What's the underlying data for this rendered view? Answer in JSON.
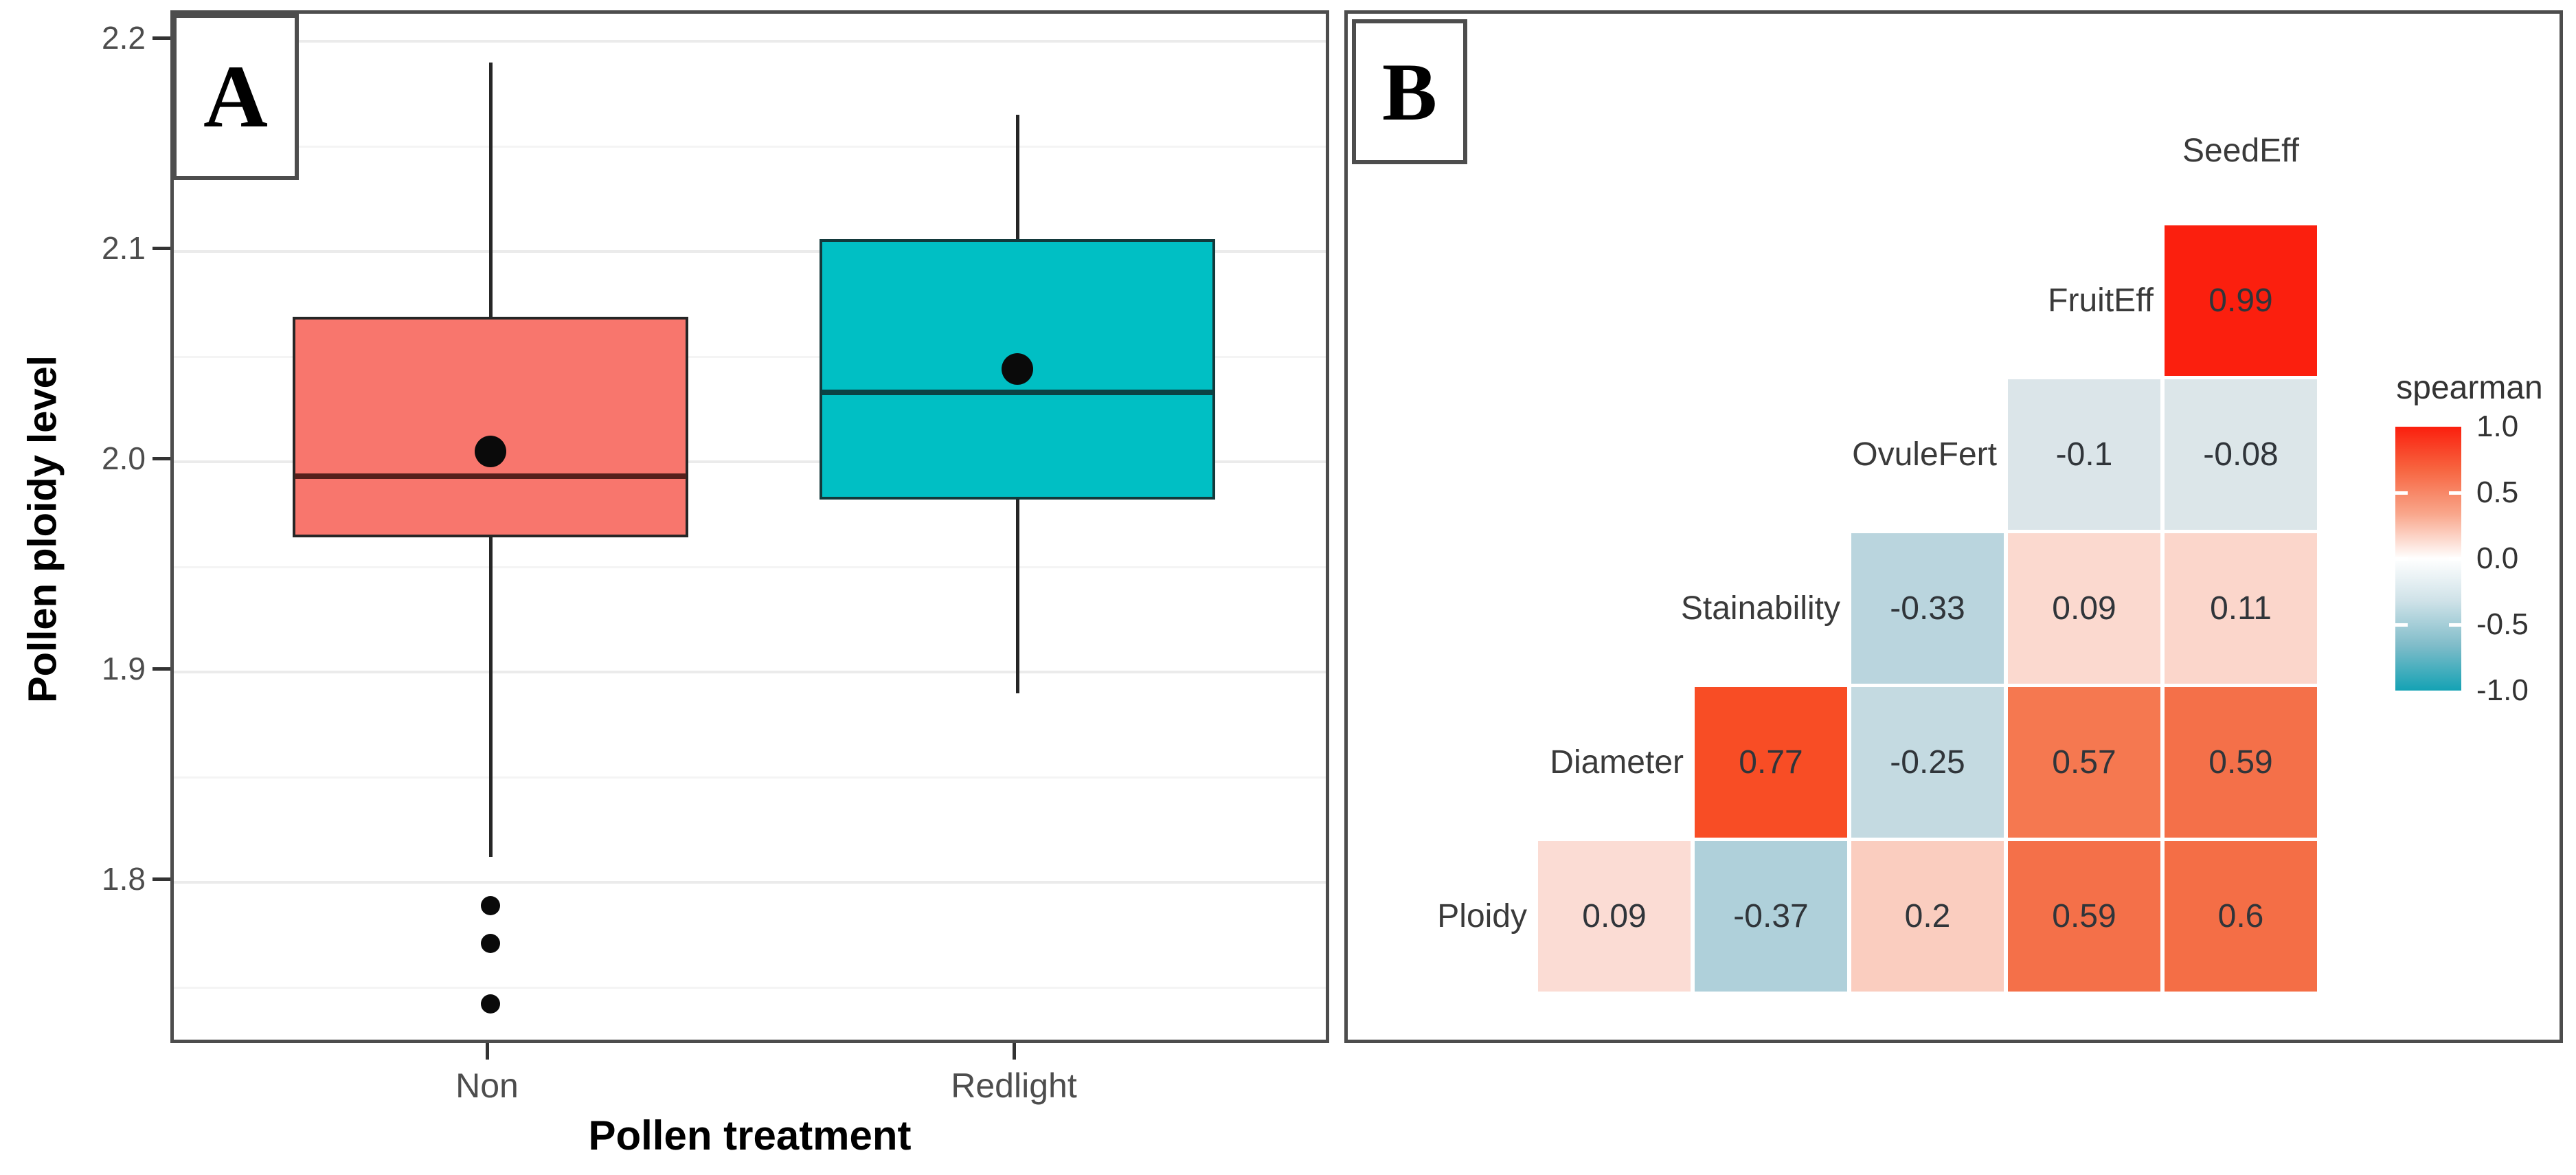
{
  "figure": {
    "background": "#ffffff"
  },
  "panel_a": {
    "letter": "A",
    "y_axis": {
      "title": "Pollen ploidy level",
      "tick_labels": [
        "2.2",
        "2.1",
        "2.0",
        "1.9",
        "1.8"
      ],
      "tick_values": [
        2.2,
        2.1,
        2.0,
        1.9,
        1.8
      ],
      "minor_tick_values": [
        2.15,
        2.05,
        1.95,
        1.85,
        1.75
      ]
    },
    "x_axis": {
      "title": "Pollen treatment",
      "categories": [
        "Non",
        "Redlight"
      ]
    },
    "boxes": [
      {
        "category": "Non",
        "fill": "#F8766D",
        "stroke": "#262626",
        "median_color": "#56201c",
        "whisker_high": 2.19,
        "q3": 2.069,
        "mean": 2.005,
        "median": 1.993,
        "q1": 1.964,
        "whisker_low": 1.812,
        "outliers": [
          1.789,
          1.771,
          1.742
        ]
      },
      {
        "category": "Redlight",
        "fill": "#00BFC4",
        "stroke": "#13393b",
        "median_color": "#0b4345",
        "whisker_high": 2.165,
        "q3": 2.106,
        "mean": 2.044,
        "median": 2.033,
        "q1": 1.982,
        "whisker_low": 1.89,
        "outliers": []
      }
    ]
  },
  "panel_b": {
    "letter": "B",
    "top_label": "SeedEff",
    "row_labels": [
      "FruitEff",
      "OvuleFert",
      "Stainability",
      "Diameter",
      "Ploidy"
    ],
    "rows": [
      {
        "label": "FruitEff",
        "cells": [
          {
            "col": 4,
            "value": "0.99",
            "color": "#FB1F0E"
          }
        ]
      },
      {
        "label": "OvuleFert",
        "cells": [
          {
            "col": 3,
            "value": "-0.1",
            "color": "#DBE5E9"
          },
          {
            "col": 4,
            "value": "-0.08",
            "color": "#DCE6E9"
          }
        ]
      },
      {
        "label": "Stainability",
        "cells": [
          {
            "col": 2,
            "value": "-0.33",
            "color": "#BAD5DE"
          },
          {
            "col": 3,
            "value": "0.09",
            "color": "#FBD9CF"
          },
          {
            "col": 4,
            "value": "0.11",
            "color": "#FBD6CB"
          }
        ]
      },
      {
        "label": "Diameter",
        "cells": [
          {
            "col": 1,
            "value": "0.77",
            "color": "#F84D25"
          },
          {
            "col": 2,
            "value": "-0.25",
            "color": "#C4DAE1"
          },
          {
            "col": 3,
            "value": "0.57",
            "color": "#F57850"
          },
          {
            "col": 4,
            "value": "0.59",
            "color": "#F47049"
          }
        ]
      },
      {
        "label": "Ploidy",
        "cells": [
          {
            "col": 0,
            "value": "0.09",
            "color": "#FBDCD4"
          },
          {
            "col": 1,
            "value": "-0.37",
            "color": "#AFD0DA"
          },
          {
            "col": 2,
            "value": "0.2",
            "color": "#FACDBF"
          },
          {
            "col": 3,
            "value": "0.59",
            "color": "#F47049"
          },
          {
            "col": 4,
            "value": "0.6",
            "color": "#F46E46"
          }
        ]
      }
    ],
    "legend": {
      "title": "spearman",
      "tick_labels": [
        "1.0",
        "0.5",
        "0.0",
        "-0.5",
        "-1.0"
      ],
      "high_color": "#FB1F0E",
      "mid_color": "#FFFFFF",
      "low_color": "#14A2B4"
    }
  },
  "chart_data": [
    {
      "type": "boxplot",
      "panel": "A",
      "xlabel": "Pollen treatment",
      "ylabel": "Pollen ploidy level",
      "ylim": [
        1.72,
        2.21
      ],
      "yticks": [
        2.2,
        2.1,
        2.0,
        1.9,
        1.8
      ],
      "categories": [
        "Non",
        "Redlight"
      ],
      "grid": true,
      "series": [
        {
          "name": "Non",
          "color": "#F8766D",
          "whisker_low": 1.81,
          "q1": 1.96,
          "median": 1.99,
          "mean": 2.005,
          "q3": 2.07,
          "whisker_high": 2.19,
          "outliers": [
            1.79,
            1.77,
            1.74
          ]
        },
        {
          "name": "Redlight",
          "color": "#00BFC4",
          "whisker_low": 1.89,
          "q1": 1.98,
          "median": 2.03,
          "mean": 2.04,
          "q3": 2.105,
          "whisker_high": 2.165,
          "outliers": []
        }
      ]
    },
    {
      "type": "heatmap",
      "panel": "B",
      "subtype": "lower-triangle correlation matrix",
      "legend_title": "spearman",
      "legend_ticks": [
        1.0,
        0.5,
        0.0,
        -0.5,
        -1.0
      ],
      "colorscale": {
        "min": -1,
        "max": 1,
        "low": "#14A2B4",
        "mid": "#FFFFFF",
        "high": "#FB1F0E"
      },
      "legend_position": "right",
      "variables": [
        "Ploidy",
        "Diameter",
        "Stainability",
        "OvuleFert",
        "FruitEff",
        "SeedEff"
      ],
      "pairs": [
        {
          "row": "FruitEff",
          "col": "SeedEff",
          "value": 0.99
        },
        {
          "row": "OvuleFert",
          "col": "FruitEff",
          "value": -0.1
        },
        {
          "row": "OvuleFert",
          "col": "SeedEff",
          "value": -0.08
        },
        {
          "row": "Stainability",
          "col": "OvuleFert",
          "value": -0.33
        },
        {
          "row": "Stainability",
          "col": "FruitEff",
          "value": 0.09
        },
        {
          "row": "Stainability",
          "col": "SeedEff",
          "value": 0.11
        },
        {
          "row": "Diameter",
          "col": "Stainability",
          "value": 0.77
        },
        {
          "row": "Diameter",
          "col": "OvuleFert",
          "value": -0.25
        },
        {
          "row": "Diameter",
          "col": "FruitEff",
          "value": 0.57
        },
        {
          "row": "Diameter",
          "col": "SeedEff",
          "value": 0.59
        },
        {
          "row": "Ploidy",
          "col": "Diameter",
          "value": 0.09
        },
        {
          "row": "Ploidy",
          "col": "Stainability",
          "value": -0.37
        },
        {
          "row": "Ploidy",
          "col": "OvuleFert",
          "value": 0.2
        },
        {
          "row": "Ploidy",
          "col": "FruitEff",
          "value": 0.59
        },
        {
          "row": "Ploidy",
          "col": "SeedEff",
          "value": 0.6
        }
      ]
    }
  ]
}
